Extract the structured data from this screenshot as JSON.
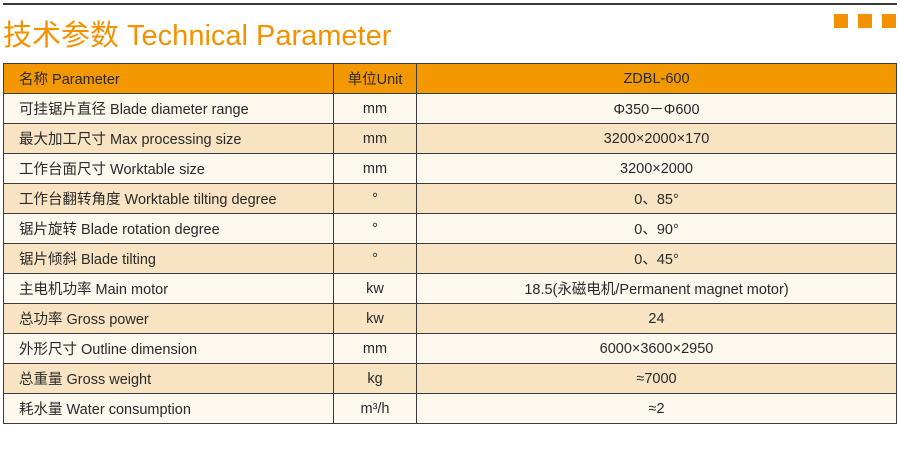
{
  "title": "技术参数 Technical Parameter",
  "accent": "#f39200",
  "header": {
    "name": "名称 Parameter",
    "unit": "单位Unit",
    "model": "ZDBL-600"
  },
  "rows": [
    {
      "name": "可挂锯片直径 Blade diameter range",
      "unit": "mm",
      "value": "Φ350－Φ600"
    },
    {
      "name": "最大加工尺寸 Max processing size",
      "unit": "mm",
      "value": "3200×2000×170"
    },
    {
      "name": "工作台面尺寸 Worktable size",
      "unit": "mm",
      "value": "3200×2000"
    },
    {
      "name": "工作台翻转角度 Worktable tilting degree",
      "unit": "°",
      "value": "0、85°"
    },
    {
      "name": "锯片旋转 Blade rotation degree",
      "unit": "°",
      "value": "0、90°"
    },
    {
      "name": "锯片倾斜 Blade tilting",
      "unit": "°",
      "value": "0、45°"
    },
    {
      "name": "主电机功率 Main motor",
      "unit": "kw",
      "value": "18.5(永磁电机/Permanent magnet motor)"
    },
    {
      "name": "总功率 Gross power",
      "unit": "kw",
      "value": "24"
    },
    {
      "name": "外形尺寸 Outline dimension",
      "unit": "mm",
      "value": "6000×3600×2950"
    },
    {
      "name": "总重量 Gross weight",
      "unit": "kg",
      "value": "≈7000"
    },
    {
      "name": "耗水量 Water consumption",
      "unit": "m³/h",
      "value": "≈2"
    }
  ]
}
